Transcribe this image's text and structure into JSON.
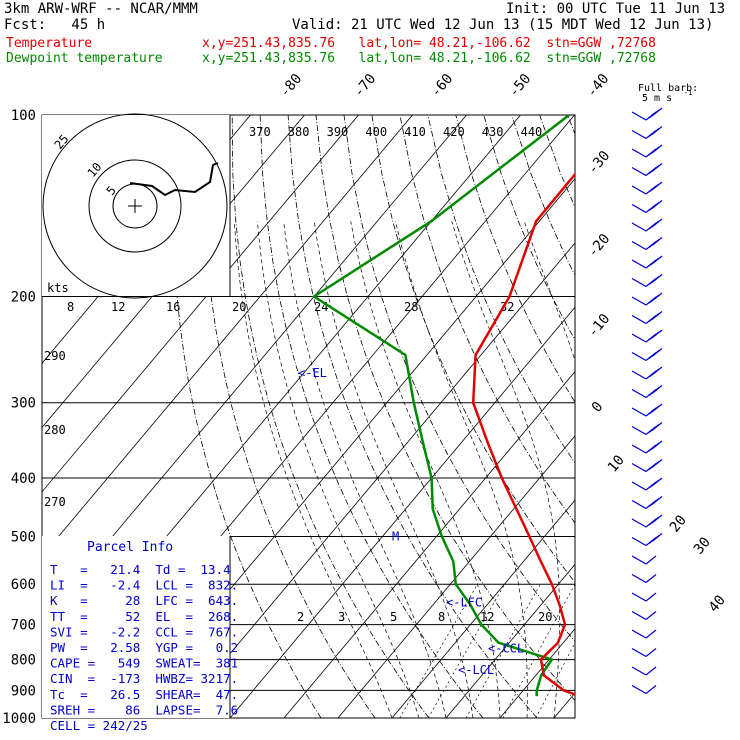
{
  "header": {
    "model": "3km ARW-WRF -- NCAR/MMM",
    "init": "Init: 00 UTC Tue 11 Jun 13",
    "fcst": "Fcst:   45 h",
    "valid": "Valid: 21 UTC Wed 12 Jun 13 (15 MDT Wed 12 Jun 13)",
    "temp_label": "Temperature",
    "dew_label": "Dewpoint temperature",
    "temp_loc": "x,y=251.43,835.76   lat,lon= 48.21,-106.62  stn=GGW ,72768",
    "dew_loc": "x,y=251.43,835.76   lat,lon= 48.21,-106.62  stn=GGW ,72768",
    "full_barb_1": "Full barb:",
    "full_barb_2": "5 m s",
    "full_barb_exp": "-1"
  },
  "colors": {
    "temperature": "#e00000",
    "dewpoint": "#008a00",
    "hodograph": "#000000",
    "barbs": "#0000cc",
    "annot": "#0000cc"
  },
  "chart_data": {
    "type": "skew-t log-p",
    "pressure_ticks": [
      100,
      200,
      300,
      400,
      500,
      600,
      700,
      800,
      900,
      1000
    ],
    "isotherm_labels": [
      "-80",
      "-70",
      "-60",
      "-50",
      "-40",
      "-30",
      "-20",
      "-10",
      "0",
      "10",
      "20",
      "30",
      "40"
    ],
    "theta_labels": [
      "290",
      "280",
      "270"
    ],
    "theta_e_labels": [
      "370",
      "380",
      "390",
      "400",
      "410",
      "420",
      "430",
      "440"
    ],
    "mixing_ratio_labels": [
      "8",
      "12",
      "16",
      "20",
      "24",
      "28",
      "32"
    ],
    "mixing_ratio_low_labels": [
      "2",
      "3",
      "5",
      "8",
      "12",
      "20"
    ],
    "temperature_profile": [
      [
        100,
        -60.8
      ],
      [
        150,
        -60.6
      ],
      [
        200,
        -53.8
      ],
      [
        250,
        -51.0
      ],
      [
        300,
        -44.0
      ],
      [
        350,
        -35.0
      ],
      [
        400,
        -27.0
      ],
      [
        450,
        -19.5
      ],
      [
        500,
        -12.8
      ],
      [
        550,
        -6.8
      ],
      [
        600,
        -1.2
      ],
      [
        650,
        3.5
      ],
      [
        700,
        7.5
      ],
      [
        750,
        9.0
      ],
      [
        800,
        8.5
      ],
      [
        850,
        11.5
      ],
      [
        900,
        17.5
      ],
      [
        920,
        21.4
      ]
    ],
    "dewpoint_profile": [
      [
        100,
        -71
      ],
      [
        150,
        -80
      ],
      [
        200,
        -90
      ],
      [
        250,
        -64
      ],
      [
        300,
        -55
      ],
      [
        350,
        -47
      ],
      [
        400,
        -40
      ],
      [
        450,
        -35
      ],
      [
        500,
        -29
      ],
      [
        550,
        -23
      ],
      [
        600,
        -19
      ],
      [
        650,
        -13
      ],
      [
        700,
        -8
      ],
      [
        750,
        -2
      ],
      [
        800,
        10.5
      ],
      [
        850,
        11.0
      ],
      [
        900,
        12.5
      ],
      [
        920,
        13.4
      ]
    ],
    "annotations": [
      {
        "label": "<-EL",
        "p": 268
      },
      {
        "label": "<-LFC",
        "p": 643
      },
      {
        "label": "<-CCL",
        "p": 767
      },
      {
        "label": "<-LCL",
        "p": 832
      },
      {
        "label": "M",
        "p": 500
      }
    ],
    "hodograph": {
      "rings": [
        "5",
        "10",
        "25"
      ],
      "kts_label": "kts"
    },
    "parcel_info": {
      "title": "Parcel Info",
      "rows": [
        "T   =   21.4  Td =  13.4",
        "LI  =   -2.4  LCL =  832.",
        "K   =     28  LFC =  643.",
        "TT  =     52  EL  =  268.",
        "SVI =   -2.2  CCL =  767.",
        "PW  =   2.58  YGP =   0.2",
        "CAPE =   549  SWEAT=  381",
        "CIN  =  -173  HWBZ= 3217.",
        "Tc  =   26.5  SHEAR=  47.",
        "SREH =    86  LAPSE=  7.6",
        "CELL = 242/25"
      ]
    }
  }
}
